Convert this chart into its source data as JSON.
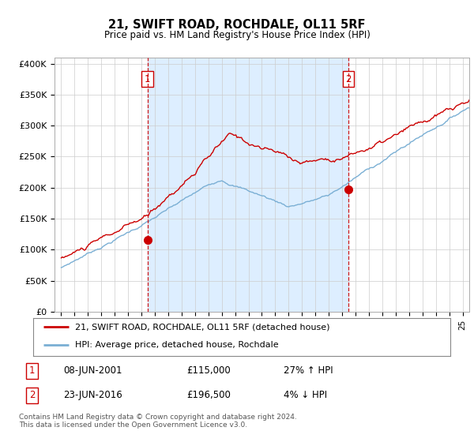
{
  "title": "21, SWIFT ROAD, ROCHDALE, OL11 5RF",
  "subtitle": "Price paid vs. HM Land Registry's House Price Index (HPI)",
  "ylabel_ticks": [
    "£0",
    "£50K",
    "£100K",
    "£150K",
    "£200K",
    "£250K",
    "£300K",
    "£350K",
    "£400K"
  ],
  "ytick_values": [
    0,
    50000,
    100000,
    150000,
    200000,
    250000,
    300000,
    350000,
    400000
  ],
  "ylim": [
    0,
    410000
  ],
  "xlim_start": 1994.5,
  "xlim_end": 2025.5,
  "red_color": "#cc0000",
  "blue_color": "#7aafd4",
  "shade_color": "#ddeeff",
  "marker1_year": 2001.44,
  "marker1_value": 115000,
  "marker2_year": 2016.47,
  "marker2_value": 196500,
  "legend_label_red": "21, SWIFT ROAD, ROCHDALE, OL11 5RF (detached house)",
  "legend_label_blue": "HPI: Average price, detached house, Rochdale",
  "table_row1_num": "1",
  "table_row1_date": "08-JUN-2001",
  "table_row1_price": "£115,000",
  "table_row1_hpi": "27% ↑ HPI",
  "table_row2_num": "2",
  "table_row2_date": "23-JUN-2016",
  "table_row2_price": "£196,500",
  "table_row2_hpi": "4% ↓ HPI",
  "footnote": "Contains HM Land Registry data © Crown copyright and database right 2024.\nThis data is licensed under the Open Government Licence v3.0.",
  "bg_color": "#ffffff",
  "grid_color": "#cccccc"
}
